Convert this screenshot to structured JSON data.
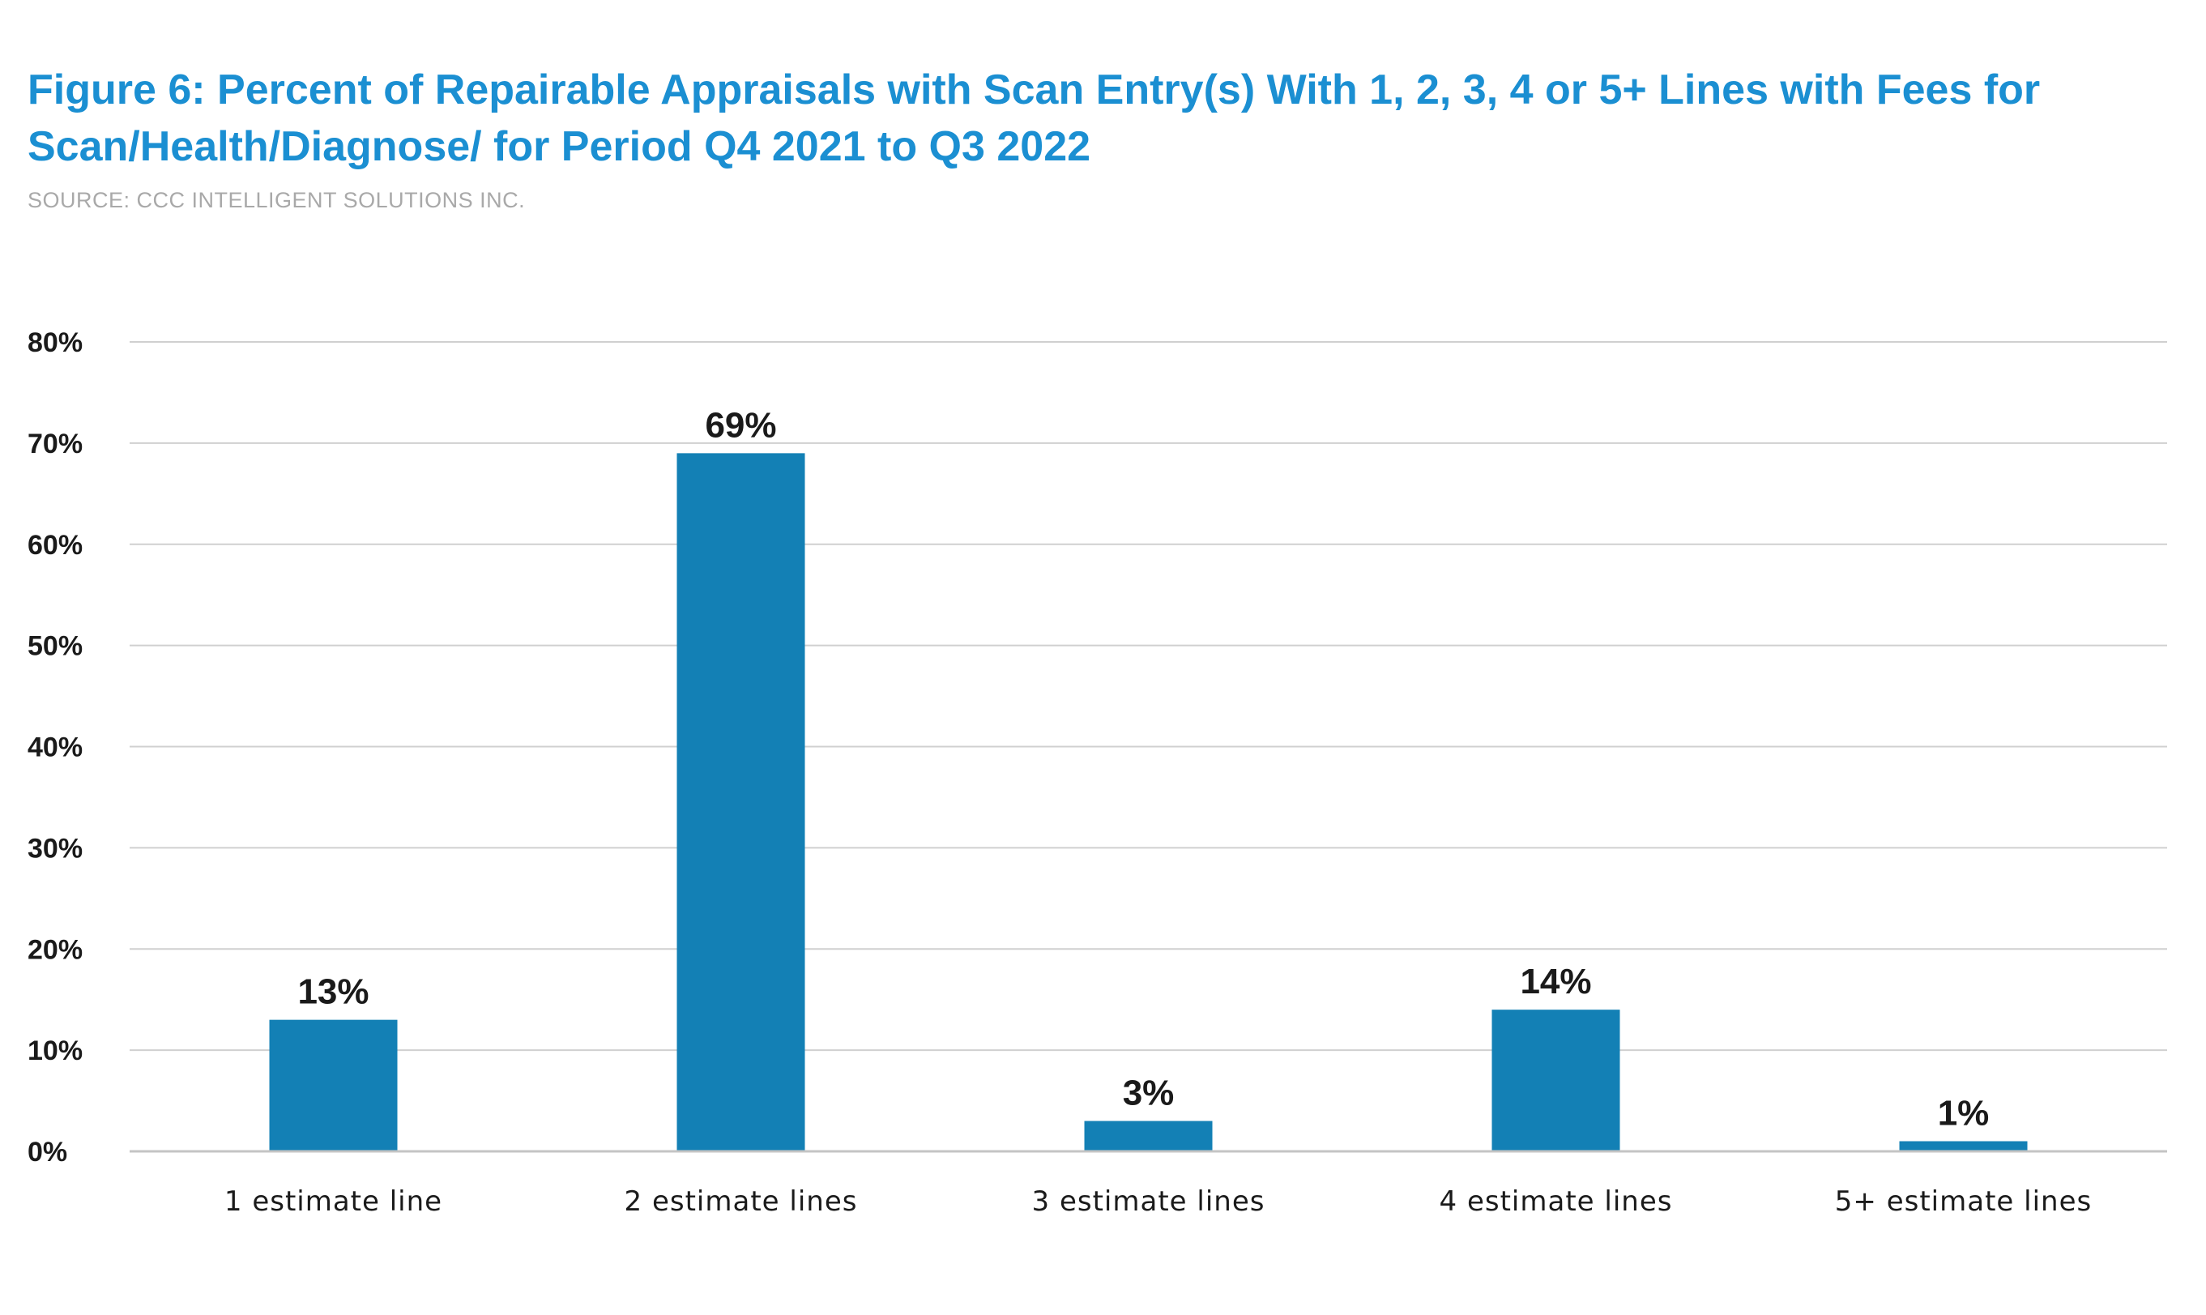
{
  "header": {
    "title": "Figure 6: Percent of Repairable Appraisals with Scan Entry(s) With 1, 2, 3, 4 or 5+ Lines with Fees for Scan/Health/Diagnose/ for Period Q4 2021 to Q3 2022",
    "source": "SOURCE: CCC INTELLIGENT SOLUTIONS INC."
  },
  "colors": {
    "title": "#1b8fd2",
    "bar": "#1380b5",
    "source": "#a9a9a9"
  },
  "chart_data": {
    "type": "bar",
    "title": "Figure 6: Percent of Repairable Appraisals with Scan Entry(s) With 1, 2, 3, 4 or 5+ Lines with Fees for Scan/Health/Diagnose/ for Period Q4 2021 to Q3 2022",
    "xlabel": "",
    "ylabel": "",
    "categories": [
      "1 estimate line",
      "2 estimate lines",
      "3 estimate lines",
      "4 estimate lines",
      "5+ estimate lines"
    ],
    "values": [
      13,
      69,
      3,
      14,
      1
    ],
    "data_labels": [
      "13%",
      "69%",
      "3%",
      "14%",
      "1%"
    ],
    "ylim": [
      0,
      80
    ],
    "yticks": [
      0,
      10,
      20,
      30,
      40,
      50,
      60,
      70,
      80
    ],
    "ytick_labels": [
      "0%",
      "10%",
      "20%",
      "30%",
      "40%",
      "50%",
      "60%",
      "70%",
      "80%"
    ],
    "grid": true,
    "legend": "none"
  }
}
